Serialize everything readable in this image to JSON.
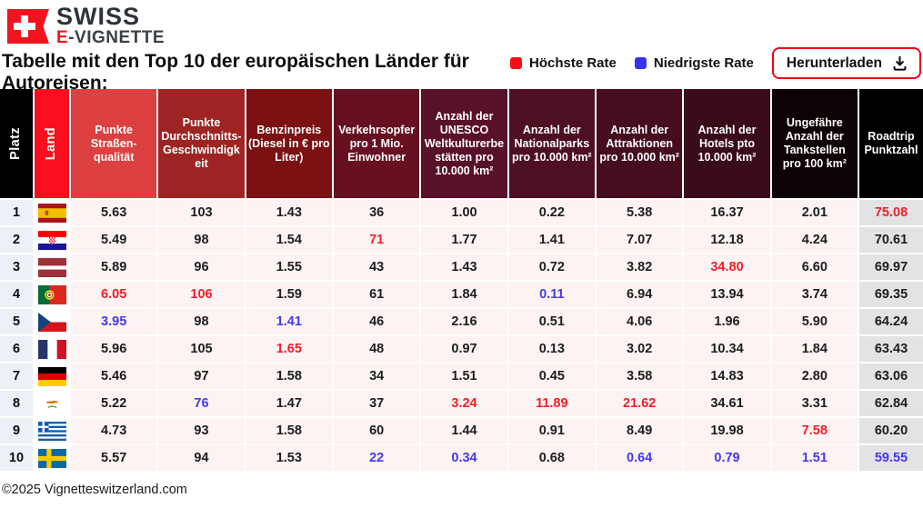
{
  "logo": {
    "swiss": "SWISS",
    "e": "E",
    "vignette": "-VIGNETTE"
  },
  "title": "Tabelle mit den Top 10 der europäischen Länder für Autoreisen:",
  "legend": {
    "highest_label": "Höchste Rate",
    "lowest_label": "Niedrigste Rate",
    "highest_color": "#f70d14",
    "lowest_color": "#3534f2"
  },
  "download": {
    "label": "Herunterladen"
  },
  "footer": {
    "copyright": "©2025 Vignetteswitzerland.com"
  },
  "colors": {
    "accent_red": "#f20019",
    "value_red": "#f51c29",
    "value_blue": "#4538f0",
    "row_bg": "#fcf3f2",
    "platz_bg": "#edf1f7",
    "roadtrip_bg": "#e3e3e5"
  },
  "table": {
    "headers": [
      {
        "label": "Platz",
        "bg": "#000000",
        "vertical": true
      },
      {
        "label": "Land",
        "bg": "#fa0f1e",
        "vertical": true
      },
      {
        "label": "Punkte Straßen-qualität",
        "bg": "#dd4040"
      },
      {
        "label": "Punkte Durchschnitts-Geschwindigkeit",
        "bg": "#9e2424"
      },
      {
        "label": "Benzinpreis (Diesel in € pro Liter)",
        "bg": "#7c1113"
      },
      {
        "label": "Verkehrsopfer pro 1 Mio. Einwohner",
        "bg": "#671021"
      },
      {
        "label": "Anzahl der UNESCO Weltkulturerbestätten pro 10.000 km²",
        "bg": "#581126"
      },
      {
        "label": "Anzahl der Nationalparks pro 10.000 km²",
        "bg": "#4e0f22"
      },
      {
        "label": "Anzahl der Attraktionen pro 10.000 km²",
        "bg": "#450d1e"
      },
      {
        "label": "Anzahl der Hotels pto 10.000 km²",
        "bg": "#3a0b18"
      },
      {
        "label": "Ungefähre Anzahl der Tankstellen pro 100 km²",
        "bg": "#0d0205"
      },
      {
        "label": "Roadtrip Punktzahl",
        "bg": "#000000"
      }
    ],
    "rows": [
      {
        "platz": "1",
        "flag": "spain",
        "values": [
          {
            "v": "5.63"
          },
          {
            "v": "103"
          },
          {
            "v": "1.43"
          },
          {
            "v": "36"
          },
          {
            "v": "1.00"
          },
          {
            "v": "0.22"
          },
          {
            "v": "5.38"
          },
          {
            "v": "16.37"
          },
          {
            "v": "2.01"
          },
          {
            "v": "75.08",
            "c": "red"
          }
        ]
      },
      {
        "platz": "2",
        "flag": "croatia",
        "values": [
          {
            "v": "5.49"
          },
          {
            "v": "98"
          },
          {
            "v": "1.54"
          },
          {
            "v": "71",
            "c": "red"
          },
          {
            "v": "1.77"
          },
          {
            "v": "1.41"
          },
          {
            "v": "7.07"
          },
          {
            "v": "12.18"
          },
          {
            "v": "4.24"
          },
          {
            "v": "70.61"
          }
        ]
      },
      {
        "platz": "3",
        "flag": "latvia",
        "values": [
          {
            "v": "5.89"
          },
          {
            "v": "96"
          },
          {
            "v": "1.55"
          },
          {
            "v": "43"
          },
          {
            "v": "1.43"
          },
          {
            "v": "0.72"
          },
          {
            "v": "3.82"
          },
          {
            "v": "34.80",
            "c": "red"
          },
          {
            "v": "6.60"
          },
          {
            "v": "69.97"
          }
        ]
      },
      {
        "platz": "4",
        "flag": "portugal",
        "values": [
          {
            "v": "6.05",
            "c": "red"
          },
          {
            "v": "106",
            "c": "red"
          },
          {
            "v": "1.59"
          },
          {
            "v": "61"
          },
          {
            "v": "1.84"
          },
          {
            "v": "0.11",
            "c": "blue"
          },
          {
            "v": "6.94"
          },
          {
            "v": "13.94"
          },
          {
            "v": "3.74"
          },
          {
            "v": "69.35"
          }
        ]
      },
      {
        "platz": "5",
        "flag": "czechia",
        "values": [
          {
            "v": "3.95",
            "c": "blue"
          },
          {
            "v": "98"
          },
          {
            "v": "1.41",
            "c": "blue"
          },
          {
            "v": "46"
          },
          {
            "v": "2.16"
          },
          {
            "v": "0.51"
          },
          {
            "v": "4.06"
          },
          {
            "v": "1.96"
          },
          {
            "v": "5.90"
          },
          {
            "v": "64.24"
          }
        ]
      },
      {
        "platz": "6",
        "flag": "france",
        "values": [
          {
            "v": "5.96"
          },
          {
            "v": "105"
          },
          {
            "v": "1.65",
            "c": "red"
          },
          {
            "v": "48"
          },
          {
            "v": "0.97"
          },
          {
            "v": "0.13"
          },
          {
            "v": "3.02"
          },
          {
            "v": "10.34"
          },
          {
            "v": "1.84"
          },
          {
            "v": "63.43"
          }
        ]
      },
      {
        "platz": "7",
        "flag": "germany",
        "values": [
          {
            "v": "5.46"
          },
          {
            "v": "97"
          },
          {
            "v": "1.58"
          },
          {
            "v": "34"
          },
          {
            "v": "1.51"
          },
          {
            "v": "0.45"
          },
          {
            "v": "3.58"
          },
          {
            "v": "14.83"
          },
          {
            "v": "2.80"
          },
          {
            "v": "63.06"
          }
        ]
      },
      {
        "platz": "8",
        "flag": "cyprus",
        "values": [
          {
            "v": "5.22"
          },
          {
            "v": "76",
            "c": "blue"
          },
          {
            "v": "1.47"
          },
          {
            "v": "37"
          },
          {
            "v": "3.24",
            "c": "red"
          },
          {
            "v": "11.89",
            "c": "red"
          },
          {
            "v": "21.62",
            "c": "red"
          },
          {
            "v": "34.61"
          },
          {
            "v": "3.31"
          },
          {
            "v": "62.84"
          }
        ]
      },
      {
        "platz": "9",
        "flag": "greece",
        "values": [
          {
            "v": "4.73"
          },
          {
            "v": "93"
          },
          {
            "v": "1.58"
          },
          {
            "v": "60"
          },
          {
            "v": "1.44"
          },
          {
            "v": "0.91"
          },
          {
            "v": "8.49"
          },
          {
            "v": "19.98"
          },
          {
            "v": "7.58",
            "c": "red"
          },
          {
            "v": "60.20"
          }
        ]
      },
      {
        "platz": "10",
        "flag": "sweden",
        "values": [
          {
            "v": "5.57"
          },
          {
            "v": "94"
          },
          {
            "v": "1.53"
          },
          {
            "v": "22",
            "c": "blue"
          },
          {
            "v": "0.34",
            "c": "blue"
          },
          {
            "v": "0.68"
          },
          {
            "v": "0.64",
            "c": "blue"
          },
          {
            "v": "0.79",
            "c": "blue"
          },
          {
            "v": "1.51",
            "c": "blue"
          },
          {
            "v": "59.55",
            "c": "blue"
          }
        ]
      }
    ]
  }
}
